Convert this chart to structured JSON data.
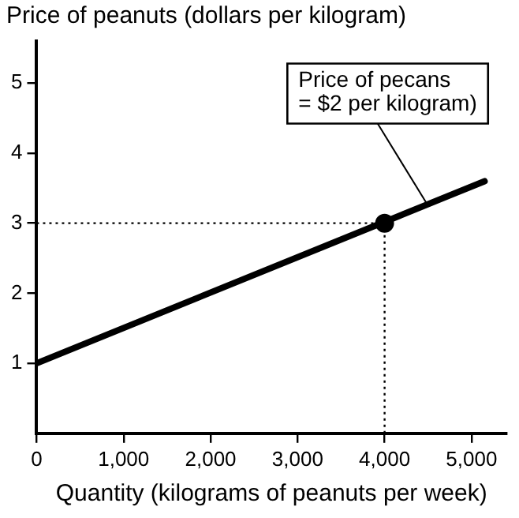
{
  "chart_data": {
    "type": "line",
    "xlabel": "Quantity (kilograms of peanuts per week)",
    "ylabel": "Price of peanuts (dollars per kilogram)",
    "series": [
      {
        "x": [
          0,
          5150
        ],
        "values": [
          1,
          3.6
        ],
        "color": "#000000",
        "marker": "none"
      },
      {
        "type": "scatter",
        "x": [
          4000
        ],
        "values": [
          3
        ],
        "color": "#000000",
        "marker": "circle"
      }
    ],
    "xlim": [
      0,
      5400
    ],
    "ylim": [
      0,
      5.6
    ],
    "xticks": [
      {
        "value": 0,
        "label": "0"
      },
      {
        "value": 1000,
        "label": "1,000"
      },
      {
        "value": 2000,
        "label": "2,000"
      },
      {
        "value": 3000,
        "label": "3,000"
      },
      {
        "value": 4000,
        "label": "4,000"
      },
      {
        "value": 5000,
        "label": "5,000"
      }
    ],
    "yticks": [
      1,
      2,
      3,
      4,
      5
    ],
    "ref_lines": [
      {
        "axis": "x",
        "value": 4000,
        "line_style": "dotted",
        "color": "#000000"
      },
      {
        "axis": "y",
        "value": 3,
        "line_style": "dotted",
        "color": "#000000"
      }
    ],
    "annotations": [
      {
        "text": "Price of pecans\n= $2 per kilogram)",
        "x": 4500,
        "y": 3.25
      }
    ],
    "grid": false,
    "legend": false
  }
}
